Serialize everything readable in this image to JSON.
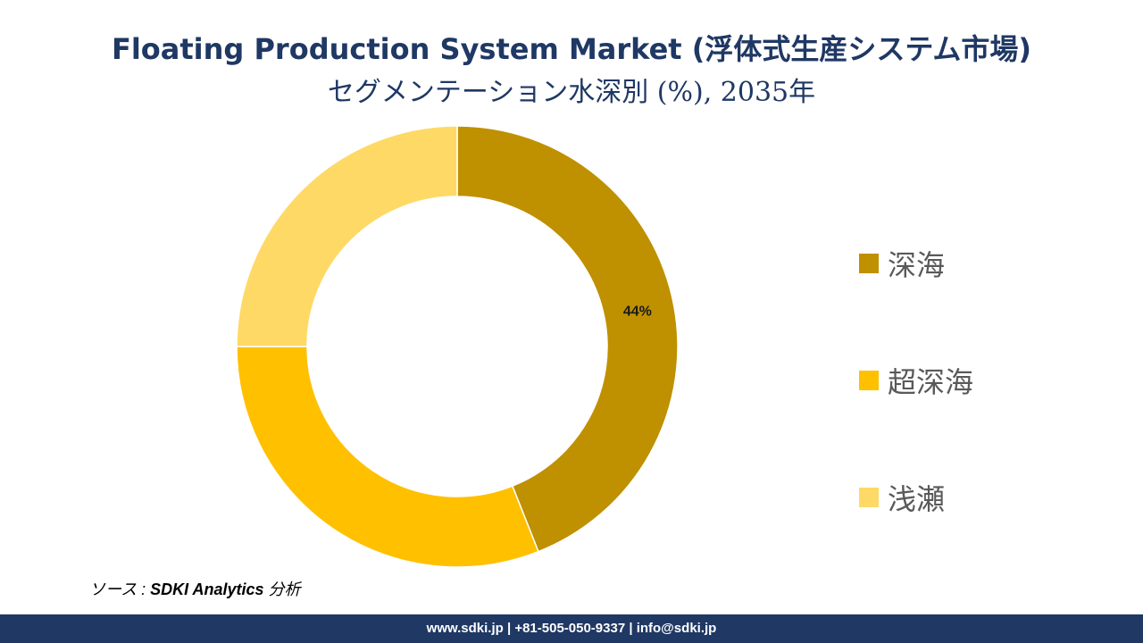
{
  "title_line1": "Floating Production System Market (浮体式生産システム市場)",
  "title_line2": "セグメンテーション水深別 (%), 2035年",
  "chart_data": {
    "type": "pie",
    "donut": true,
    "categories": [
      "深海",
      "超深海",
      "浅瀬"
    ],
    "values": [
      44,
      31,
      25
    ],
    "data_labels": [
      "44%",
      "",
      ""
    ],
    "colors": [
      "#bf9000",
      "#ffc000",
      "#ffd966"
    ],
    "legend_position": "right"
  },
  "source": {
    "prefix": "ソース : ",
    "name": "SDKI Analytics",
    "suffix": " 分析"
  },
  "footer": {
    "text": "www.sdki.jp | +81-505-050-9337 | info@sdki.jp"
  },
  "colors": {
    "title": "#1f3864",
    "footer_bg": "#1f3864"
  }
}
